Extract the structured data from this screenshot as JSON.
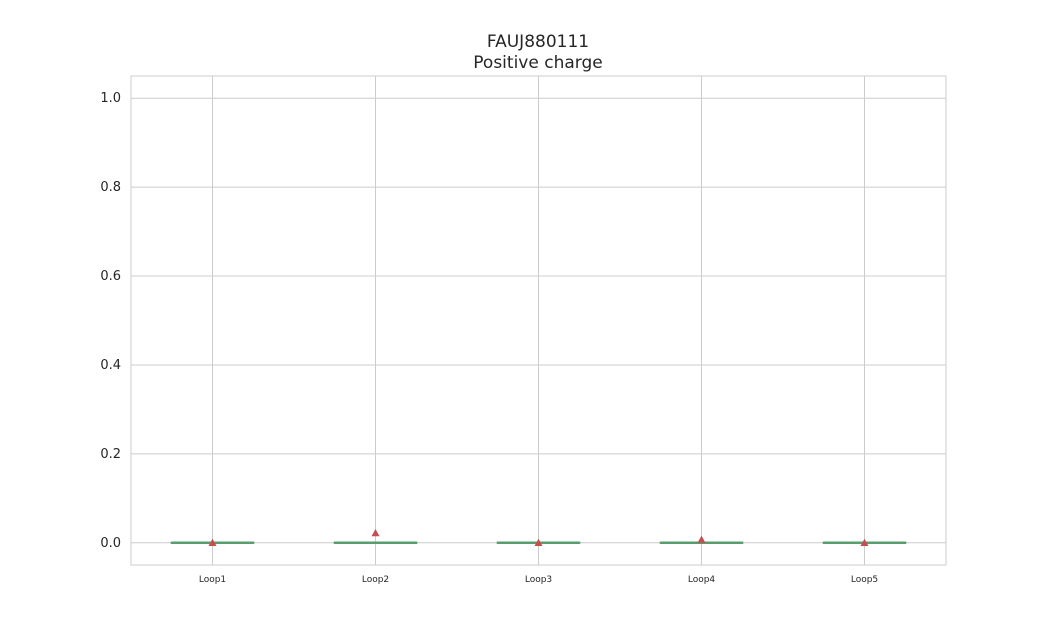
{
  "chart_data": {
    "type": "box",
    "title": "FAUJ880111",
    "subtitle": "Positive charge",
    "xlabel": "",
    "ylabel": "",
    "categories": [
      "Loop1",
      "Loop2",
      "Loop3",
      "Loop4",
      "Loop5"
    ],
    "series": [
      {
        "values": [
          {
            "min": 0,
            "q1": 0,
            "median": 0,
            "q3": 0,
            "max": 0,
            "mean": 0.0
          },
          {
            "min": 0,
            "q1": 0,
            "median": 0,
            "q3": 0,
            "max": 0,
            "mean": 0.022
          },
          {
            "min": 0,
            "q1": 0,
            "median": 0,
            "q3": 0,
            "max": 0,
            "mean": 0.0
          },
          {
            "min": 0,
            "q1": 0,
            "median": 0,
            "q3": 0,
            "max": 0,
            "mean": 0.007
          },
          {
            "min": 0,
            "q1": 0,
            "median": 0,
            "q3": 0,
            "max": 0,
            "mean": 0.0
          }
        ]
      }
    ],
    "ylim": [
      -0.05,
      1.05
    ],
    "yticks": [
      "0.0",
      "0.2",
      "0.4",
      "0.6",
      "0.8",
      "1.0"
    ],
    "grid": true,
    "colors": {
      "median": "#5a9e6f",
      "mean_marker": "#c44e52",
      "grid": "#cccccc",
      "spine": "#cccccc",
      "text": "#262626"
    }
  }
}
